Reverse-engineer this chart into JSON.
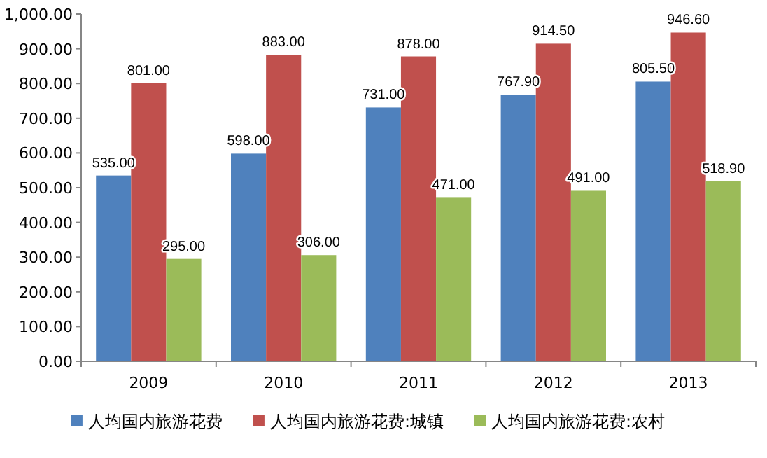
{
  "chart_data": {
    "type": "bar",
    "categories": [
      "2009",
      "2010",
      "2011",
      "2012",
      "2013"
    ],
    "series": [
      {
        "name": "人均国内旅游花费",
        "color": "#4f81bd",
        "values": [
          535.0,
          598.0,
          731.0,
          767.9,
          805.5
        ],
        "value_labels": [
          "535.00",
          "598.00",
          "731.00",
          "767.90",
          "805.50"
        ]
      },
      {
        "name": "人均国内旅游花费:城镇",
        "color": "#c0504d",
        "values": [
          801.0,
          883.0,
          878.0,
          914.5,
          946.6
        ],
        "value_labels": [
          "801.00",
          "883.00",
          "878.00",
          "914.50",
          "946.60"
        ]
      },
      {
        "name": "人均国内旅游花费:农村",
        "color": "#9bbb59",
        "values": [
          295.0,
          306.0,
          471.0,
          491.0,
          518.9
        ],
        "value_labels": [
          "295.00",
          "306.00",
          "471.00",
          "491.00",
          "518.90"
        ]
      }
    ],
    "ylim": [
      0,
      1000
    ],
    "yticks": [
      {
        "value": 0,
        "label": "0.00"
      },
      {
        "value": 100,
        "label": "100.00"
      },
      {
        "value": 200,
        "label": "200.00"
      },
      {
        "value": 300,
        "label": "300.00"
      },
      {
        "value": 400,
        "label": "400.00"
      },
      {
        "value": 500,
        "label": "500.00"
      },
      {
        "value": 600,
        "label": "600.00"
      },
      {
        "value": 700,
        "label": "700.00"
      },
      {
        "value": 800,
        "label": "800.00"
      },
      {
        "value": 900,
        "label": "900.00"
      },
      {
        "value": 1000,
        "label": "1,000.00"
      }
    ],
    "grid": false,
    "legend": "bottom"
  }
}
